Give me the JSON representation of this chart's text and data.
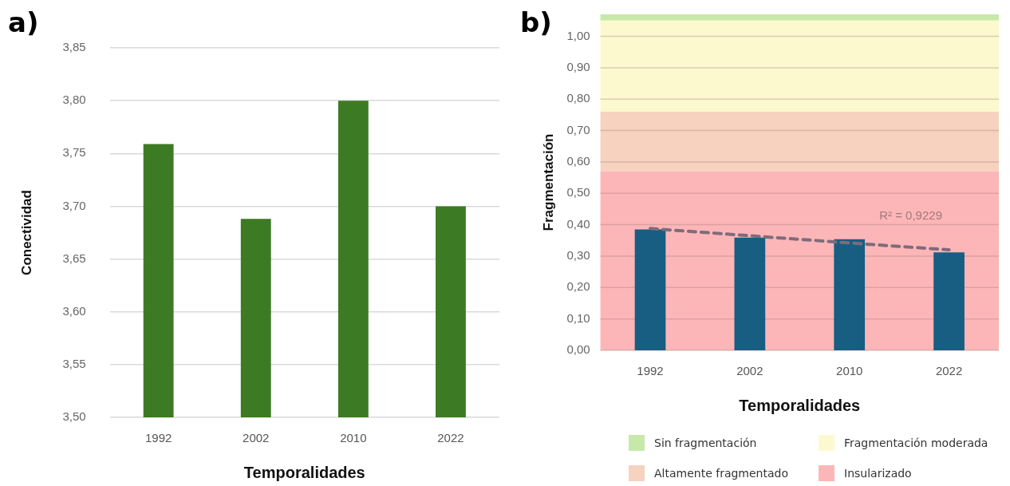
{
  "chart_data": [
    {
      "type": "bar",
      "title": "a)",
      "xlabel": "Temporalidades",
      "ylabel": "Conectividad",
      "categories": [
        "1992",
        "2002",
        "2010",
        "2022"
      ],
      "values": [
        3.759,
        3.688,
        3.8,
        3.7
      ],
      "color": "#3d7a24",
      "ylim": [
        3.5,
        3.85
      ],
      "yticks": [
        {
          "value": 3.5,
          "label": "3,50"
        },
        {
          "value": 3.55,
          "label": "3,55"
        },
        {
          "value": 3.6,
          "label": "3,60"
        },
        {
          "value": 3.65,
          "label": "3,65"
        },
        {
          "value": 3.7,
          "label": "3,70"
        },
        {
          "value": 3.75,
          "label": "3,75"
        },
        {
          "value": 3.8,
          "label": "3,80"
        },
        {
          "value": 3.85,
          "label": "3,85"
        }
      ],
      "grid": "y"
    },
    {
      "type": "bar",
      "title": "b)",
      "xlabel": "Temporalidades",
      "ylabel": "Fragmentación",
      "categories": [
        "1992",
        "2002",
        "2010",
        "2022"
      ],
      "series": [
        {
          "type": "bar",
          "color": "#175e82",
          "values": [
            0.385,
            0.359,
            0.354,
            0.312
          ]
        },
        {
          "type": "line",
          "color": "#7d6c7c",
          "line_style": "dashed",
          "values": [
            0.388,
            0.365,
            0.342,
            0.32
          ]
        }
      ],
      "ylim": [
        0,
        1.07
      ],
      "yticks": [
        {
          "value": 0,
          "label": "0,00"
        },
        {
          "value": 0.1,
          "label": "0,10"
        },
        {
          "value": 0.2,
          "label": "0,20"
        },
        {
          "value": 0.3,
          "label": "0,30"
        },
        {
          "value": 0.4,
          "label": "0,40"
        },
        {
          "value": 0.5,
          "label": "0,50"
        },
        {
          "value": 0.6,
          "label": "0,60"
        },
        {
          "value": 0.7,
          "label": "0,70"
        },
        {
          "value": 0.8,
          "label": "0,80"
        },
        {
          "value": 0.9,
          "label": "0,90"
        },
        {
          "value": 1,
          "label": "1,00"
        }
      ],
      "bands": [
        {
          "axis": "y",
          "from": 1.05,
          "to": 1.07,
          "label": "Sin fragmentación",
          "color": "#c6e9a9"
        },
        {
          "axis": "y",
          "from": 0.76,
          "to": 1.05,
          "label": "Fragmentación moderada",
          "color": "#fdf9cf"
        },
        {
          "axis": "y",
          "from": 0.57,
          "to": 0.76,
          "label": "Altamente fragmentado",
          "color": "#f6d2bf"
        },
        {
          "axis": "y",
          "from": 0,
          "to": 0.57,
          "label": "Insularizado",
          "color": "#fdb6b7"
        }
      ],
      "annotations": [
        "R² = 0,9229"
      ],
      "legend": "bottom",
      "grid": "y"
    }
  ]
}
